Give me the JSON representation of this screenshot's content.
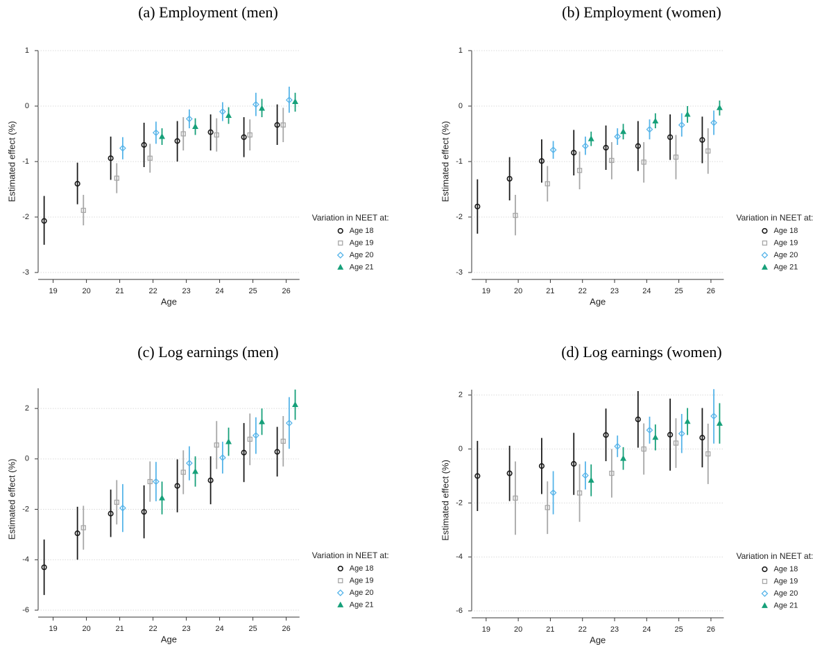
{
  "chart_data": [
    {
      "type": "errorbar",
      "title": "(a) Employment (men)",
      "x_label": "Age",
      "y_label": "Estimated effect (%)",
      "legend_title": "Variation in NEET at:",
      "x": [
        19,
        20,
        21,
        22,
        23,
        24,
        25,
        26
      ],
      "xlim": [
        18.55,
        26.4
      ],
      "xticks": [
        19,
        20,
        21,
        22,
        23,
        24,
        25,
        26
      ],
      "ylim": [
        -3,
        1
      ],
      "yticks": [
        -3,
        -2,
        -1,
        0,
        1
      ],
      "grid": true,
      "series": [
        {
          "name": "Age 18",
          "color": "#1a1a1a",
          "marker": "circle",
          "values": [
            -2.07,
            -1.4,
            -0.94,
            -0.7,
            -0.63,
            -0.47,
            -0.56,
            -0.34
          ],
          "ci_low": [
            -2.5,
            -1.77,
            -1.33,
            -1.1,
            -1.0,
            -0.8,
            -0.92,
            -0.7
          ],
          "ci_high": [
            -1.62,
            -1.02,
            -0.55,
            -0.3,
            -0.27,
            -0.15,
            -0.2,
            0.03
          ]
        },
        {
          "name": "Age 19",
          "color": "#a6a6a6",
          "marker": "square",
          "values": [
            null,
            -1.88,
            -1.3,
            -0.94,
            -0.5,
            -0.52,
            -0.52,
            -0.34
          ],
          "ci_low": [
            null,
            -2.15,
            -1.57,
            -1.2,
            -0.8,
            -0.82,
            -0.8,
            -0.65
          ],
          "ci_high": [
            null,
            -1.6,
            -1.03,
            -0.68,
            -0.2,
            -0.22,
            -0.24,
            -0.03
          ]
        },
        {
          "name": "Age 20",
          "color": "#56b4e9",
          "marker": "diamond",
          "values": [
            null,
            null,
            -0.76,
            -0.48,
            -0.23,
            -0.1,
            0.03,
            0.11
          ],
          "ci_low": [
            null,
            null,
            -0.96,
            -0.68,
            -0.4,
            -0.27,
            -0.18,
            -0.12
          ],
          "ci_high": [
            null,
            null,
            -0.56,
            -0.28,
            -0.06,
            0.07,
            0.24,
            0.35
          ]
        },
        {
          "name": "Age 21",
          "color": "#17a07a",
          "marker": "triangle",
          "values": [
            null,
            null,
            null,
            -0.55,
            -0.37,
            -0.17,
            -0.04,
            0.08
          ],
          "ci_low": [
            null,
            null,
            null,
            -0.7,
            -0.52,
            -0.32,
            -0.2,
            -0.1
          ],
          "ci_high": [
            null,
            null,
            null,
            -0.4,
            -0.22,
            -0.02,
            0.13,
            0.24
          ]
        }
      ]
    },
    {
      "type": "errorbar",
      "title": "(b) Employment (women)",
      "x_label": "Age",
      "y_label": "Estimated effect (%)",
      "legend_title": "Variation in NEET at:",
      "x": [
        19,
        20,
        21,
        22,
        23,
        24,
        25,
        26
      ],
      "xlim": [
        18.55,
        26.4
      ],
      "xticks": [
        19,
        20,
        21,
        22,
        23,
        24,
        25,
        26
      ],
      "ylim": [
        -3,
        1
      ],
      "yticks": [
        -3,
        -2,
        -1,
        0,
        1
      ],
      "grid": true,
      "series": [
        {
          "name": "Age 18",
          "color": "#1a1a1a",
          "marker": "circle",
          "values": [
            -1.81,
            -1.31,
            -0.99,
            -0.84,
            -0.75,
            -0.72,
            -0.56,
            -0.61
          ],
          "ci_low": [
            -2.3,
            -1.7,
            -1.38,
            -1.25,
            -1.15,
            -1.17,
            -0.97,
            -1.03
          ],
          "ci_high": [
            -1.32,
            -0.92,
            -0.6,
            -0.43,
            -0.35,
            -0.27,
            -0.15,
            -0.19
          ]
        },
        {
          "name": "Age 19",
          "color": "#a6a6a6",
          "marker": "square",
          "values": [
            null,
            -1.97,
            -1.4,
            -1.16,
            -0.98,
            -1.01,
            -0.92,
            -0.81
          ],
          "ci_low": [
            null,
            -2.33,
            -1.72,
            -1.5,
            -1.32,
            -1.38,
            -1.32,
            -1.22
          ],
          "ci_high": [
            null,
            -1.6,
            -1.08,
            -0.82,
            -0.65,
            -0.65,
            -0.52,
            -0.4
          ]
        },
        {
          "name": "Age 20",
          "color": "#56b4e9",
          "marker": "diamond",
          "values": [
            null,
            null,
            -0.79,
            -0.72,
            -0.55,
            -0.42,
            -0.34,
            -0.3
          ],
          "ci_low": [
            null,
            null,
            -0.95,
            -0.88,
            -0.7,
            -0.6,
            -0.55,
            -0.52
          ],
          "ci_high": [
            null,
            null,
            -0.63,
            -0.55,
            -0.4,
            -0.24,
            -0.13,
            -0.08
          ]
        },
        {
          "name": "Age 21",
          "color": "#17a07a",
          "marker": "triangle",
          "values": [
            null,
            null,
            null,
            -0.59,
            -0.46,
            -0.27,
            -0.15,
            -0.03
          ],
          "ci_low": [
            null,
            null,
            null,
            -0.72,
            -0.6,
            -0.4,
            -0.3,
            -0.17
          ],
          "ci_high": [
            null,
            null,
            null,
            -0.46,
            -0.32,
            -0.13,
            0.0,
            0.1
          ]
        }
      ]
    },
    {
      "type": "errorbar",
      "title": "(c) Log earnings (men)",
      "x_label": "Age",
      "y_label": "Estimated effect (%)",
      "legend_title": "Variation in NEET at:",
      "x": [
        19,
        20,
        21,
        22,
        23,
        24,
        25,
        26
      ],
      "xlim": [
        18.55,
        26.4
      ],
      "xticks": [
        19,
        20,
        21,
        22,
        23,
        24,
        25,
        26
      ],
      "ylim": [
        -6,
        2.8
      ],
      "yticks": [
        -6,
        -4,
        -2,
        0,
        2
      ],
      "grid": true,
      "series": [
        {
          "name": "Age 18",
          "color": "#1a1a1a",
          "marker": "circle",
          "values": [
            -4.3,
            -2.95,
            -2.17,
            -2.1,
            -1.07,
            -0.85,
            0.25,
            0.28
          ],
          "ci_low": [
            -5.4,
            -4.0,
            -3.1,
            -3.15,
            -2.12,
            -1.8,
            -0.92,
            -0.7
          ],
          "ci_high": [
            -3.2,
            -1.9,
            -1.22,
            -1.05,
            -0.02,
            0.1,
            1.42,
            1.27
          ]
        },
        {
          "name": "Age 19",
          "color": "#a6a6a6",
          "marker": "square",
          "values": [
            null,
            -2.73,
            -1.72,
            -0.9,
            -0.53,
            0.55,
            0.78,
            0.7
          ],
          "ci_low": [
            null,
            -3.6,
            -2.6,
            -1.7,
            -1.4,
            -0.4,
            -0.25,
            -0.3
          ],
          "ci_high": [
            null,
            -1.86,
            -0.84,
            -0.1,
            0.34,
            1.5,
            1.8,
            1.7
          ]
        },
        {
          "name": "Age 20",
          "color": "#56b4e9",
          "marker": "diamond",
          "values": [
            null,
            null,
            -1.95,
            -0.9,
            -0.17,
            0.05,
            0.93,
            1.42
          ],
          "ci_low": [
            null,
            null,
            -2.9,
            -1.68,
            -0.85,
            -0.58,
            0.2,
            0.4
          ],
          "ci_high": [
            null,
            null,
            -1.0,
            -0.12,
            0.5,
            0.68,
            1.65,
            2.45
          ]
        },
        {
          "name": "Age 21",
          "color": "#17a07a",
          "marker": "triangle",
          "values": [
            null,
            null,
            null,
            -1.55,
            -0.5,
            0.68,
            1.47,
            2.15
          ],
          "ci_low": [
            null,
            null,
            null,
            -2.2,
            -1.1,
            0.12,
            0.95,
            1.55
          ],
          "ci_high": [
            null,
            null,
            null,
            -0.9,
            0.1,
            1.24,
            2.0,
            2.75
          ]
        }
      ]
    },
    {
      "type": "errorbar",
      "title": "(d) Log earnings (women)",
      "x_label": "Age",
      "y_label": "Estimated effect (%)",
      "legend_title": "Variation in NEET at:",
      "x": [
        19,
        20,
        21,
        22,
        23,
        24,
        25,
        26
      ],
      "xlim": [
        18.55,
        26.4
      ],
      "xticks": [
        19,
        20,
        21,
        22,
        23,
        24,
        25,
        26
      ],
      "ylim": [
        -6,
        2.2
      ],
      "yticks": [
        -6,
        -4,
        -2,
        0,
        2
      ],
      "grid": true,
      "series": [
        {
          "name": "Age 18",
          "color": "#1a1a1a",
          "marker": "circle",
          "values": [
            -1.0,
            -0.9,
            -0.63,
            -0.55,
            0.52,
            1.1,
            0.53,
            0.42
          ],
          "ci_low": [
            -2.3,
            -1.93,
            -1.67,
            -1.7,
            -0.45,
            0.05,
            -0.8,
            -0.68
          ],
          "ci_high": [
            0.3,
            0.12,
            0.41,
            0.6,
            1.5,
            2.15,
            1.87,
            1.52
          ]
        },
        {
          "name": "Age 19",
          "color": "#a6a6a6",
          "marker": "square",
          "values": [
            null,
            -1.82,
            -2.17,
            -1.63,
            -0.9,
            0.0,
            0.22,
            -0.18
          ],
          "ci_low": [
            null,
            -3.18,
            -3.15,
            -2.7,
            -1.8,
            -0.95,
            -0.7,
            -1.3
          ],
          "ci_high": [
            null,
            -0.46,
            -1.2,
            -0.56,
            0.0,
            0.95,
            1.14,
            0.94
          ]
        },
        {
          "name": "Age 20",
          "color": "#56b4e9",
          "marker": "diamond",
          "values": [
            null,
            null,
            -1.62,
            -0.98,
            0.1,
            0.7,
            0.57,
            1.22
          ],
          "ci_low": [
            null,
            null,
            -2.42,
            -1.5,
            -0.3,
            0.2,
            -0.15,
            0.2
          ],
          "ci_high": [
            null,
            null,
            -0.82,
            -0.46,
            0.5,
            1.2,
            1.3,
            2.22
          ]
        },
        {
          "name": "Age 21",
          "color": "#17a07a",
          "marker": "triangle",
          "values": [
            null,
            null,
            null,
            -1.16,
            -0.35,
            0.43,
            1.02,
            0.95
          ],
          "ci_low": [
            null,
            null,
            null,
            -1.75,
            -0.77,
            -0.05,
            0.52,
            0.2
          ],
          "ci_high": [
            null,
            null,
            null,
            -0.57,
            0.07,
            0.91,
            1.52,
            1.7
          ]
        }
      ]
    }
  ]
}
